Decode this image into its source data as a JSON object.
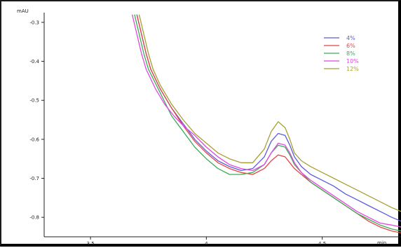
{
  "chart_data": {
    "type": "line",
    "title": "",
    "ylabel": "mAU",
    "xlabel": "min",
    "xlim": [
      3.3,
      4.84
    ],
    "ylim": [
      -0.85,
      -0.275
    ],
    "x_ticks": [
      3.5,
      4,
      4.5
    ],
    "x_tick_labels": [
      "3.5",
      "4",
      "4.5"
    ],
    "y_ticks": [
      -0.3,
      -0.4,
      -0.5,
      -0.6,
      -0.7,
      -0.8
    ],
    "y_tick_labels": [
      "-0.3",
      "-0.4",
      "-0.5",
      "-0.6",
      "-0.7",
      "-0.8"
    ],
    "grid": false,
    "legend_position": "top-right",
    "series": [
      {
        "name": "4%",
        "color": "#5b5bdc",
        "x": [
          3.7,
          3.72,
          3.74,
          3.76,
          3.8,
          3.85,
          3.9,
          3.95,
          4.0,
          4.05,
          4.1,
          4.15,
          4.2,
          4.25,
          4.28,
          4.31,
          4.34,
          4.36,
          4.38,
          4.41,
          4.45,
          4.5,
          4.55,
          4.6,
          4.65,
          4.7,
          4.75,
          4.8,
          4.84
        ],
        "y": [
          -0.28,
          -0.33,
          -0.38,
          -0.42,
          -0.47,
          -0.52,
          -0.56,
          -0.6,
          -0.63,
          -0.655,
          -0.67,
          -0.68,
          -0.675,
          -0.645,
          -0.605,
          -0.585,
          -0.59,
          -0.615,
          -0.645,
          -0.67,
          -0.69,
          -0.705,
          -0.72,
          -0.74,
          -0.755,
          -0.77,
          -0.785,
          -0.8,
          -0.81
        ]
      },
      {
        "name": "6%",
        "color": "#e04646",
        "x": [
          3.7,
          3.72,
          3.74,
          3.76,
          3.8,
          3.85,
          3.9,
          3.95,
          4.0,
          4.05,
          4.1,
          4.15,
          4.2,
          4.25,
          4.28,
          4.31,
          4.34,
          4.36,
          4.38,
          4.41,
          4.45,
          4.5,
          4.55,
          4.6,
          4.65,
          4.7,
          4.75,
          4.8,
          4.84
        ],
        "y": [
          -0.28,
          -0.33,
          -0.38,
          -0.42,
          -0.47,
          -0.52,
          -0.565,
          -0.605,
          -0.635,
          -0.66,
          -0.675,
          -0.685,
          -0.69,
          -0.675,
          -0.655,
          -0.64,
          -0.645,
          -0.66,
          -0.675,
          -0.69,
          -0.71,
          -0.73,
          -0.75,
          -0.77,
          -0.79,
          -0.81,
          -0.825,
          -0.835,
          -0.84
        ]
      },
      {
        "name": "8%",
        "color": "#3daa5a",
        "x": [
          3.69,
          3.71,
          3.73,
          3.75,
          3.8,
          3.85,
          3.9,
          3.95,
          4.0,
          4.05,
          4.1,
          4.15,
          4.2,
          4.25,
          4.28,
          4.31,
          4.34,
          4.36,
          4.38,
          4.41,
          4.45,
          4.5,
          4.55,
          4.6,
          4.65,
          4.7,
          4.75,
          4.8,
          4.84
        ],
        "y": [
          -0.28,
          -0.33,
          -0.38,
          -0.42,
          -0.48,
          -0.54,
          -0.58,
          -0.62,
          -0.65,
          -0.675,
          -0.69,
          -0.69,
          -0.685,
          -0.665,
          -0.635,
          -0.615,
          -0.62,
          -0.64,
          -0.665,
          -0.685,
          -0.71,
          -0.73,
          -0.75,
          -0.77,
          -0.79,
          -0.805,
          -0.82,
          -0.83,
          -0.835
        ]
      },
      {
        "name": "10%",
        "color": "#e246e2",
        "x": [
          3.68,
          3.7,
          3.72,
          3.74,
          3.78,
          3.82,
          3.86,
          3.9,
          3.95,
          4.0,
          4.05,
          4.1,
          4.15,
          4.2,
          4.25,
          4.28,
          4.31,
          4.34,
          4.36,
          4.38,
          4.41,
          4.45,
          4.5,
          4.55,
          4.6,
          4.65,
          4.7,
          4.75,
          4.8,
          4.84
        ],
        "y": [
          -0.28,
          -0.33,
          -0.38,
          -0.42,
          -0.47,
          -0.51,
          -0.54,
          -0.565,
          -0.59,
          -0.62,
          -0.645,
          -0.665,
          -0.675,
          -0.68,
          -0.665,
          -0.635,
          -0.61,
          -0.615,
          -0.635,
          -0.66,
          -0.685,
          -0.705,
          -0.725,
          -0.745,
          -0.765,
          -0.785,
          -0.8,
          -0.815,
          -0.82,
          -0.825
        ]
      },
      {
        "name": "12%",
        "color": "#a8a032",
        "x": [
          3.71,
          3.73,
          3.75,
          3.77,
          3.8,
          3.85,
          3.9,
          3.95,
          4.0,
          4.05,
          4.1,
          4.15,
          4.2,
          4.25,
          4.28,
          4.31,
          4.34,
          4.36,
          4.38,
          4.41,
          4.45,
          4.5,
          4.55,
          4.6,
          4.65,
          4.7,
          4.75,
          4.8,
          4.84
        ],
        "y": [
          -0.28,
          -0.33,
          -0.38,
          -0.42,
          -0.46,
          -0.51,
          -0.55,
          -0.585,
          -0.61,
          -0.635,
          -0.65,
          -0.66,
          -0.66,
          -0.625,
          -0.58,
          -0.555,
          -0.57,
          -0.6,
          -0.635,
          -0.655,
          -0.67,
          -0.685,
          -0.7,
          -0.715,
          -0.73,
          -0.745,
          -0.76,
          -0.775,
          -0.785
        ]
      }
    ]
  }
}
